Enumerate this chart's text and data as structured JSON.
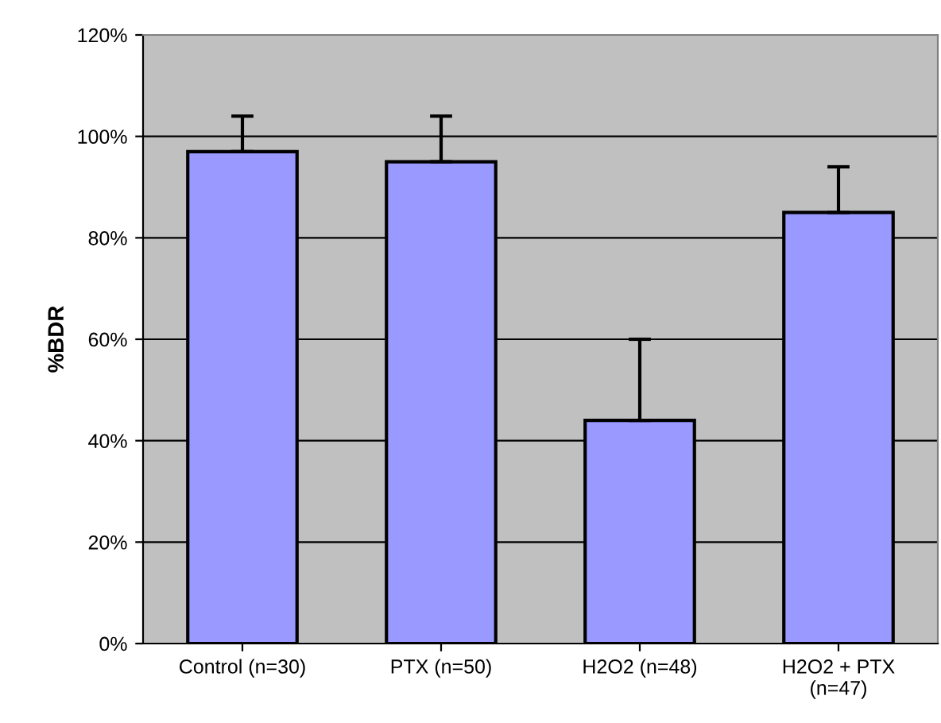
{
  "chart_data": {
    "type": "bar",
    "ylabel": "%BDR",
    "categories": [
      "Control (n=30)",
      "PTX (n=50)",
      "H2O2 (n=48)",
      "H2O2 + PTX\n(n=47)"
    ],
    "values": [
      97,
      95,
      44,
      85
    ],
    "errors": [
      [
        97,
        104
      ],
      [
        95,
        104
      ],
      [
        44,
        60
      ],
      [
        85,
        94
      ]
    ],
    "color": "#9999ff",
    "ylim": [
      0,
      120
    ],
    "yticks": [
      {
        "value": 0,
        "label": "0%"
      },
      {
        "value": 20,
        "label": "20%"
      },
      {
        "value": 40,
        "label": "40%"
      },
      {
        "value": 60,
        "label": "60%"
      },
      {
        "value": 80,
        "label": "80%"
      },
      {
        "value": 100,
        "label": "100%"
      },
      {
        "value": 120,
        "label": "120%"
      }
    ],
    "grid": "y",
    "legend": false
  }
}
